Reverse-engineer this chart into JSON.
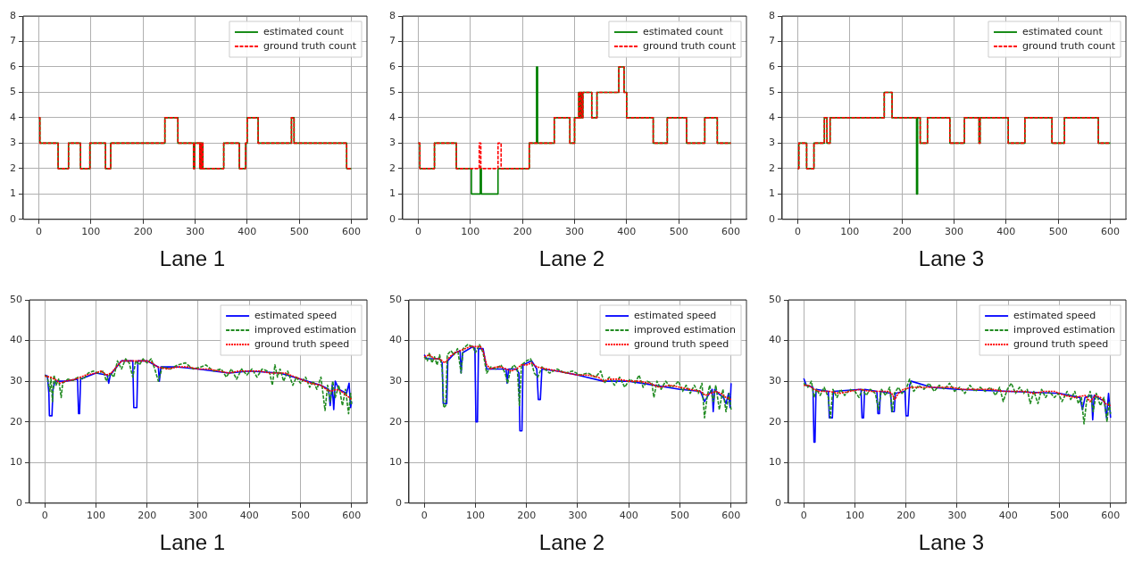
{
  "chart_data": [
    {
      "type": "step",
      "xlabel": "Lane 1",
      "xlim": [
        -30,
        630
      ],
      "xticks": [
        0,
        100,
        200,
        300,
        400,
        500,
        600
      ],
      "ylim": [
        0,
        8
      ],
      "yticks": [
        0,
        1,
        2,
        3,
        4,
        5,
        6,
        7,
        8
      ],
      "grid": true,
      "legend": "top right",
      "marker": "none",
      "series": [
        {
          "name": "estimated count",
          "color": "#008000",
          "line_style": "solid",
          "x": [
            0,
            2,
            37,
            57,
            80,
            98,
            128,
            138,
            242,
            267,
            297,
            299,
            309,
            310,
            312,
            313,
            315,
            355,
            385,
            397,
            400,
            421,
            485,
            490,
            591,
            600
          ],
          "values": [
            4,
            3,
            2,
            3,
            2,
            3,
            2,
            3,
            4,
            3,
            2,
            3,
            2,
            3,
            2,
            3,
            2,
            3,
            2,
            3,
            4,
            3,
            4,
            3,
            2,
            2
          ]
        },
        {
          "name": "ground truth count",
          "color": "#ff0000",
          "line_style": "dashed",
          "x": [
            0,
            2,
            37,
            57,
            80,
            98,
            128,
            138,
            242,
            267,
            297,
            299,
            309,
            310,
            312,
            313,
            315,
            355,
            385,
            397,
            400,
            421,
            485,
            490,
            591,
            600
          ],
          "values": [
            4,
            3,
            2,
            3,
            2,
            3,
            2,
            3,
            4,
            3,
            2,
            3,
            2,
            3,
            2,
            3,
            2,
            3,
            2,
            3,
            4,
            3,
            4,
            3,
            2,
            2
          ]
        }
      ]
    },
    {
      "type": "step",
      "xlabel": "Lane 2",
      "xlim": [
        -30,
        630
      ],
      "xticks": [
        0,
        100,
        200,
        300,
        400,
        500,
        600
      ],
      "ylim": [
        0,
        8
      ],
      "yticks": [
        0,
        1,
        2,
        3,
        4,
        5,
        6,
        7,
        8
      ],
      "grid": true,
      "legend": "top right",
      "marker": "none",
      "series": [
        {
          "name": "estimated count",
          "color": "#008000",
          "line_style": "solid",
          "x": [
            0,
            3,
            31,
            73,
            102,
            119,
            121,
            153,
            213,
            227,
            229,
            261,
            291,
            300,
            308,
            310,
            312,
            314,
            316,
            333,
            343,
            385,
            395,
            400,
            451,
            478,
            515,
            550,
            574,
            600
          ],
          "values": [
            3,
            2,
            3,
            2,
            1,
            2,
            1,
            2,
            3,
            6,
            3,
            4,
            3,
            4,
            5,
            4,
            5,
            4,
            5,
            4,
            5,
            6,
            5,
            4,
            3,
            4,
            3,
            4,
            3,
            3
          ]
        },
        {
          "name": "ground truth count",
          "color": "#ff0000",
          "line_style": "dashed",
          "x": [
            0,
            3,
            31,
            73,
            117,
            120,
            153,
            159,
            213,
            261,
            291,
            300,
            308,
            310,
            312,
            314,
            316,
            333,
            343,
            385,
            395,
            400,
            451,
            478,
            515,
            550,
            574,
            600
          ],
          "values": [
            3,
            2,
            3,
            2,
            3,
            2,
            3,
            2,
            3,
            4,
            3,
            4,
            5,
            4,
            5,
            4,
            5,
            4,
            5,
            6,
            5,
            4,
            3,
            4,
            3,
            4,
            3,
            3
          ]
        }
      ]
    },
    {
      "type": "step",
      "xlabel": "Lane 3",
      "xlim": [
        -30,
        630
      ],
      "xticks": [
        0,
        100,
        200,
        300,
        400,
        500,
        600
      ],
      "ylim": [
        0,
        8
      ],
      "yticks": [
        0,
        1,
        2,
        3,
        4,
        5,
        6,
        7,
        8
      ],
      "grid": true,
      "legend": "top right",
      "marker": "none",
      "series": [
        {
          "name": "estimated count",
          "color": "#008000",
          "line_style": "solid",
          "x": [
            0,
            2,
            17,
            31,
            51,
            56,
            62,
            166,
            181,
            228,
            230,
            235,
            249,
            292,
            320,
            348,
            350,
            404,
            436,
            488,
            512,
            577,
            600
          ],
          "values": [
            2,
            3,
            2,
            3,
            4,
            3,
            4,
            5,
            4,
            1,
            4,
            3,
            4,
            3,
            4,
            3,
            4,
            3,
            4,
            3,
            4,
            3,
            3
          ]
        },
        {
          "name": "ground truth count",
          "color": "#ff0000",
          "line_style": "dashed",
          "x": [
            0,
            2,
            17,
            31,
            51,
            56,
            62,
            166,
            181,
            235,
            249,
            292,
            320,
            348,
            350,
            404,
            436,
            488,
            512,
            577,
            600
          ],
          "values": [
            2,
            3,
            2,
            3,
            4,
            3,
            4,
            5,
            4,
            3,
            4,
            3,
            4,
            3,
            4,
            3,
            4,
            3,
            4,
            3,
            3
          ]
        }
      ]
    },
    {
      "type": "line",
      "xlabel": "Lane 1",
      "xlim": [
        -30,
        630
      ],
      "xticks": [
        0,
        100,
        200,
        300,
        400,
        500,
        600
      ],
      "ylim": [
        0,
        50
      ],
      "yticks": [
        0,
        10,
        20,
        30,
        40,
        50
      ],
      "grid": true,
      "legend": "top right",
      "marker": "none",
      "series": [
        {
          "name": "estimated speed",
          "color": "#0000ff",
          "line_style": "solid",
          "x": [
            0,
            5,
            8,
            9,
            14,
            16,
            20,
            40,
            64,
            66,
            68,
            70,
            100,
            122,
            125,
            128,
            150,
            172,
            174,
            180,
            182,
            200,
            222,
            224,
            227,
            260,
            300,
            360,
            400,
            460,
            500,
            540,
            555,
            558,
            562,
            565,
            568,
            575,
            590,
            595,
            598,
            600
          ],
          "values": [
            31.5,
            31.3,
            27,
            21.5,
            21.5,
            28,
            30,
            30,
            30.5,
            22,
            22,
            30.5,
            32,
            31.5,
            29.5,
            31.5,
            35,
            35,
            23.5,
            23.5,
            35,
            35,
            33.5,
            30,
            33.5,
            33.5,
            33,
            32,
            32.5,
            32,
            30.5,
            29,
            28,
            24,
            29,
            23,
            30,
            28,
            27,
            29.5,
            23.5,
            25
          ]
        },
        {
          "name": "improved estimation",
          "color": "#228b22",
          "line_style": "dashed",
          "x": [
            0,
            5,
            10,
            12,
            15,
            18,
            22,
            27,
            32,
            35,
            45,
            55,
            65,
            75,
            85,
            95,
            105,
            115,
            120,
            128,
            135,
            142,
            150,
            158,
            165,
            172,
            178,
            185,
            192,
            200,
            208,
            215,
            222,
            230,
            245,
            260,
            275,
            290,
            305,
            315,
            330,
            345,
            355,
            365,
            375,
            385,
            395,
            405,
            415,
            425,
            435,
            440,
            445,
            450,
            455,
            460,
            467,
            475,
            485,
            492,
            500,
            510,
            518,
            525,
            532,
            540,
            548,
            553,
            558,
            563,
            568,
            575,
            582,
            588,
            594,
            598,
            600
          ],
          "values": [
            31.5,
            31,
            27.5,
            31,
            25,
            31.5,
            29,
            30.5,
            26,
            29.5,
            30.5,
            30.2,
            31,
            30.5,
            32,
            32.5,
            32,
            32.5,
            30,
            32,
            31,
            35,
            33,
            35.5,
            34.5,
            31,
            35,
            34,
            35.5,
            34.5,
            35.5,
            33,
            30,
            33.5,
            33,
            34,
            34.5,
            33,
            33.5,
            34,
            32.5,
            33,
            31,
            33,
            30.5,
            33,
            31.5,
            33,
            31,
            33,
            32.5,
            32,
            29,
            34,
            31,
            33,
            30,
            32.5,
            29,
            31,
            29.5,
            31,
            28.5,
            30,
            28,
            31,
            22.8,
            29,
            25,
            30,
            26,
            29,
            24,
            28,
            22,
            27,
            24
          ]
        },
        {
          "name": "ground truth speed",
          "color": "#ff0000",
          "line_style": "dotted",
          "x": [
            0,
            10,
            20,
            30,
            40,
            60,
            80,
            100,
            110,
            120,
            130,
            140,
            150,
            160,
            170,
            190,
            200,
            210,
            220,
            240,
            260,
            280,
            300,
            320,
            340,
            360,
            380,
            400,
            420,
            440,
            460,
            470,
            480,
            500,
            520,
            540,
            550,
            560,
            570,
            580,
            590,
            600
          ],
          "values": [
            31.3,
            31,
            30.5,
            29.5,
            30,
            30.5,
            31.5,
            32,
            32.5,
            31.5,
            32,
            33.5,
            35,
            35,
            35,
            35,
            35,
            34.5,
            33.5,
            33,
            33.5,
            33.5,
            33,
            33,
            32.5,
            32,
            32.5,
            32.5,
            32.5,
            32,
            32,
            32,
            31.5,
            30.5,
            29.5,
            29,
            28,
            27.5,
            28,
            27.5,
            26.5,
            25.5
          ]
        }
      ]
    },
    {
      "type": "line",
      "xlabel": "Lane 2",
      "xlim": [
        -30,
        630
      ],
      "xticks": [
        0,
        100,
        200,
        300,
        400,
        500,
        600
      ],
      "ylim": [
        0,
        50
      ],
      "yticks": [
        0,
        10,
        20,
        30,
        40,
        50
      ],
      "grid": true,
      "legend": "top right",
      "marker": "none",
      "series": [
        {
          "name": "estimated speed",
          "color": "#0000ff",
          "line_style": "solid",
          "x": [
            0,
            5,
            30,
            35,
            37,
            44,
            46,
            60,
            70,
            72,
            75,
            95,
            99,
            101,
            104,
            106,
            115,
            122,
            160,
            162,
            165,
            180,
            185,
            187,
            191,
            193,
            210,
            220,
            223,
            227,
            230,
            260,
            300,
            350,
            400,
            500,
            540,
            548,
            555,
            563,
            565,
            568,
            575,
            585,
            590,
            595,
            598,
            600
          ],
          "values": [
            36.5,
            35.5,
            35.5,
            34.5,
            24.5,
            24.5,
            35,
            37,
            37.5,
            32,
            37,
            38.5,
            38,
            20,
            20,
            38,
            38,
            33,
            33,
            29.5,
            33,
            33,
            32,
            17.8,
            17.8,
            34,
            35,
            33,
            25.5,
            25.5,
            33,
            32.5,
            31.5,
            30,
            30,
            28,
            27.5,
            25,
            26.5,
            28,
            22.5,
            28,
            27,
            26,
            24.5,
            27,
            23.5,
            29.5
          ]
        },
        {
          "name": "improved estimation",
          "color": "#228b22",
          "line_style": "dashed",
          "x": [
            0,
            6,
            10,
            15,
            20,
            25,
            30,
            35,
            38,
            42,
            45,
            52,
            58,
            65,
            72,
            76,
            85,
            95,
            100,
            108,
            115,
            122,
            130,
            140,
            150,
            158,
            163,
            168,
            175,
            182,
            186,
            190,
            200,
            208,
            215,
            222,
            230,
            245,
            260,
            275,
            290,
            305,
            320,
            335,
            345,
            352,
            362,
            372,
            382,
            392,
            402,
            412,
            420,
            428,
            436,
            445,
            449,
            455,
            463,
            472,
            482,
            490,
            497,
            505,
            512,
            520,
            528,
            536,
            543,
            548,
            553,
            558,
            565,
            570,
            577,
            584,
            590,
            596,
            600
          ],
          "values": [
            36,
            35,
            37,
            34.5,
            36,
            34,
            36.5,
            33,
            23.5,
            24,
            36.5,
            37.5,
            36.5,
            38,
            32,
            38,
            39,
            38.5,
            37,
            39,
            37,
            32,
            33.5,
            33,
            34,
            32,
            29.5,
            32.5,
            34,
            33,
            24,
            34,
            35,
            35.5,
            32,
            31,
            33.5,
            32,
            33,
            32,
            32.5,
            31.5,
            32,
            31,
            32.5,
            29.5,
            31,
            29,
            31,
            28.5,
            30.5,
            29.5,
            31.5,
            28.5,
            30,
            29.5,
            26,
            30,
            28,
            30,
            28.5,
            29,
            30,
            27.5,
            29,
            27,
            29,
            27,
            29.5,
            21,
            26,
            29,
            25,
            29,
            23,
            28,
            22.5,
            27,
            23
          ]
        },
        {
          "name": "ground truth speed",
          "color": "#ff0000",
          "line_style": "dotted",
          "x": [
            0,
            10,
            20,
            30,
            40,
            50,
            60,
            70,
            80,
            90,
            100,
            110,
            115,
            122,
            130,
            140,
            150,
            160,
            170,
            180,
            190,
            200,
            210,
            220,
            240,
            260,
            280,
            300,
            320,
            340,
            350,
            360,
            380,
            400,
            420,
            440,
            460,
            480,
            500,
            520,
            540,
            550,
            560,
            570,
            580,
            590,
            600
          ],
          "values": [
            36,
            36.5,
            35.5,
            35.5,
            34.5,
            36,
            37,
            37.5,
            38,
            38.5,
            38.5,
            38.5,
            37.5,
            34,
            33,
            33.5,
            33.5,
            33,
            32.5,
            33,
            34,
            34,
            34.5,
            33.5,
            33,
            32.5,
            32,
            31.5,
            31.5,
            31,
            30,
            30.5,
            30.5,
            30,
            30,
            29.5,
            28.5,
            29,
            28.5,
            28,
            27.5,
            26.5,
            27,
            27.5,
            27,
            26,
            25.5
          ]
        }
      ]
    },
    {
      "type": "line",
      "xlabel": "Lane 3",
      "xlim": [
        -30,
        630
      ],
      "xticks": [
        0,
        100,
        200,
        300,
        400,
        500,
        600
      ],
      "ylim": [
        0,
        50
      ],
      "yticks": [
        0,
        10,
        20,
        30,
        40,
        50
      ],
      "grid": true,
      "legend": "top right",
      "marker": "none",
      "series": [
        {
          "name": "estimated speed",
          "color": "#0000ff",
          "line_style": "solid",
          "x": [
            0,
            5,
            18,
            20,
            22,
            24,
            48,
            50,
            56,
            58,
            112,
            114,
            117,
            119,
            143,
            145,
            148,
            150,
            170,
            172,
            177,
            179,
            198,
            200,
            204,
            207,
            210,
            250,
            300,
            400,
            500,
            540,
            545,
            550,
            563,
            565,
            568,
            575,
            588,
            592,
            596,
            600
          ],
          "values": [
            30.7,
            29,
            28.5,
            15,
            15,
            28,
            27.5,
            21,
            21,
            27.5,
            28,
            21,
            21,
            28,
            27.5,
            22,
            22,
            27.5,
            27,
            22.5,
            22.5,
            27,
            27.5,
            21.5,
            21.5,
            29,
            30,
            28.5,
            28,
            27.5,
            27,
            26,
            23,
            26,
            26.5,
            20.5,
            26.5,
            26,
            25,
            21,
            27,
            21
          ]
        },
        {
          "name": "improved estimation",
          "color": "#228b22",
          "line_style": "dashed",
          "x": [
            0,
            8,
            15,
            20,
            25,
            32,
            40,
            48,
            52,
            57,
            65,
            72,
            80,
            90,
            100,
            108,
            115,
            122,
            130,
            140,
            146,
            152,
            160,
            168,
            173,
            177,
            185,
            192,
            200,
            207,
            215,
            225,
            235,
            245,
            255,
            265,
            275,
            285,
            295,
            305,
            315,
            325,
            335,
            345,
            355,
            365,
            375,
            383,
            390,
            398,
            406,
            414,
            422,
            430,
            437,
            443,
            450,
            458,
            465,
            473,
            480,
            490,
            498,
            505,
            515,
            522,
            530,
            537,
            543,
            548,
            553,
            560,
            566,
            572,
            580,
            587,
            593,
            597,
            600
          ],
          "values": [
            29.5,
            28.5,
            30,
            26,
            28,
            26.5,
            28.5,
            26,
            21,
            28,
            26,
            28,
            26.5,
            28,
            27.5,
            26,
            28,
            26.5,
            28,
            27,
            23,
            28,
            26.5,
            28.5,
            22.5,
            27,
            28.5,
            27,
            28,
            30.5,
            27.5,
            29,
            28,
            29.5,
            27.5,
            29,
            28,
            29.5,
            27.5,
            28.5,
            27,
            29,
            27.5,
            28.5,
            27.5,
            28.5,
            26.5,
            28.5,
            25,
            28,
            29.5,
            27,
            28.5,
            27,
            28,
            24.5,
            27.5,
            24.5,
            28,
            26,
            27.5,
            26,
            27,
            25,
            27.5,
            25.5,
            27.5,
            24.5,
            26,
            19.5,
            25,
            27.5,
            22.5,
            27,
            24,
            26,
            20,
            25,
            22
          ]
        },
        {
          "name": "ground truth speed",
          "color": "#ff0000",
          "line_style": "dotted",
          "x": [
            0,
            10,
            20,
            30,
            50,
            70,
            90,
            110,
            130,
            150,
            165,
            172,
            178,
            185,
            195,
            210,
            230,
            250,
            270,
            290,
            310,
            330,
            350,
            370,
            390,
            410,
            430,
            450,
            470,
            490,
            510,
            530,
            550,
            560,
            570,
            580,
            590,
            600
          ],
          "values": [
            29,
            29,
            28,
            27.5,
            27.5,
            27,
            27.5,
            28,
            27.5,
            27.5,
            27.5,
            27,
            25.5,
            27,
            28,
            28.5,
            28.5,
            28.5,
            28.5,
            28.5,
            28,
            28,
            28,
            28,
            27.5,
            27.5,
            27.5,
            27,
            27.5,
            27.5,
            26.5,
            26,
            26.5,
            25,
            26.5,
            26,
            24.5,
            24
          ]
        }
      ]
    }
  ]
}
